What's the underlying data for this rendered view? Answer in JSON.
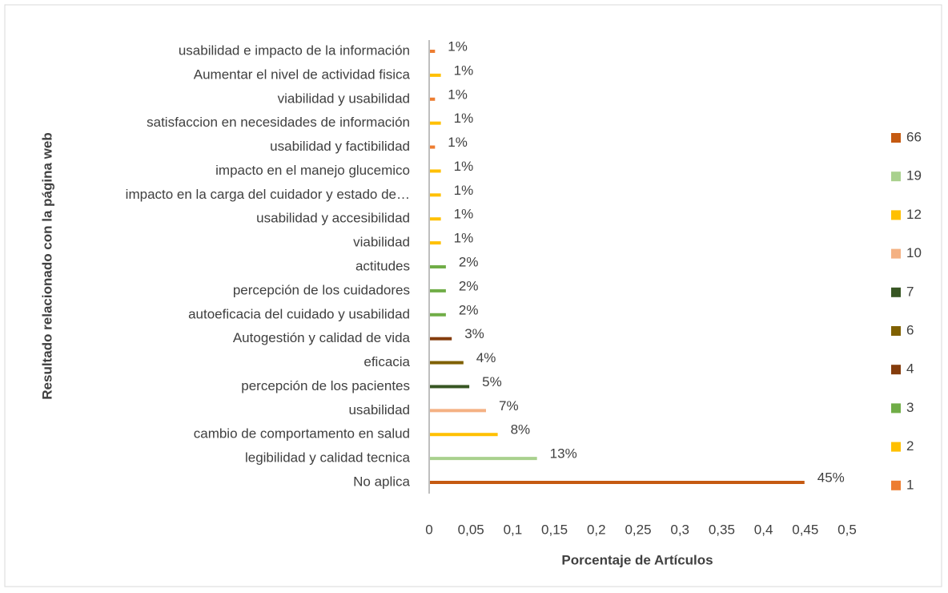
{
  "chart_data": {
    "type": "hbar",
    "x_label": "Porcentaje de Artículos",
    "y_label": "Resultado relacionado con la página web",
    "categories": [
      "No aplica",
      "legibilidad y calidad tecnica",
      "cambio de comportamento en salud",
      "usabilidad",
      "percepción de los pacientes",
      "eficacia",
      "Autogestión y calidad de vida",
      "autoeficacia del cuidado y usabilidad",
      "percepción de los cuidadores",
      "actitudes",
      "viabilidad",
      "usabilidad y accesibilidad",
      "impacto en la carga del cuidador y estado de…",
      "impacto en el manejo glucemico",
      "usabilidad y factibilidad",
      "satisfaccion en necesidades de información",
      "viabilidad y usabilidad",
      "Aumentar el nivel de actividad fisica",
      "usabilidad e impacto de la información"
    ],
    "values": [
      0.449,
      0.129,
      0.082,
      0.068,
      0.048,
      0.041,
      0.027,
      0.02,
      0.02,
      0.02,
      0.014,
      0.014,
      0.014,
      0.014,
      0.007,
      0.014,
      0.007,
      0.014,
      0.007
    ],
    "value_labels": [
      "45%",
      "13%",
      "8%",
      "7%",
      "5%",
      "4%",
      "3%",
      "2%",
      "2%",
      "2%",
      "1%",
      "1%",
      "1%",
      "1%",
      "1%",
      "1%",
      "1%",
      "1%",
      "1%"
    ],
    "colors": [
      "#c55a11",
      "#a9d18e",
      "#ffc000",
      "#f4b183",
      "#375623",
      "#7f6000",
      "#843c0c",
      "#70ad47",
      "#70ad47",
      "#70ad47",
      "#ffc000",
      "#ffc000",
      "#ffc000",
      "#ffc000",
      "#ed7d31",
      "#ffc000",
      "#ed7d31",
      "#ffc000",
      "#ed7d31"
    ],
    "legend": [
      {
        "name": "66",
        "color": "#c55a11"
      },
      {
        "name": "19",
        "color": "#a9d18e"
      },
      {
        "name": "12",
        "color": "#ffc000"
      },
      {
        "name": "10",
        "color": "#f4b183"
      },
      {
        "name": "7",
        "color": "#375623"
      },
      {
        "name": "6",
        "color": "#7f6000"
      },
      {
        "name": "4",
        "color": "#843c0c"
      },
      {
        "name": "3",
        "color": "#70ad47"
      },
      {
        "name": "2",
        "color": "#ffc000"
      },
      {
        "name": "1",
        "color": "#ed7d31"
      }
    ],
    "xlim": [
      0,
      0.5
    ],
    "xticks": [
      0,
      {
        "value": 0.05,
        "label": "0,05"
      },
      {
        "value": 0.1,
        "label": "0,1"
      },
      {
        "value": 0.15,
        "label": "0,15"
      },
      {
        "value": 0.2,
        "label": "0,2"
      },
      {
        "value": 0.25,
        "label": "0,25"
      },
      {
        "value": 0.3,
        "label": "0,3"
      },
      {
        "value": 0.35,
        "label": "0,35"
      },
      {
        "value": 0.4,
        "label": "0,4"
      },
      {
        "value": 0.45,
        "label": "0,45"
      },
      {
        "value": 0.5,
        "label": "0,5"
      }
    ]
  }
}
